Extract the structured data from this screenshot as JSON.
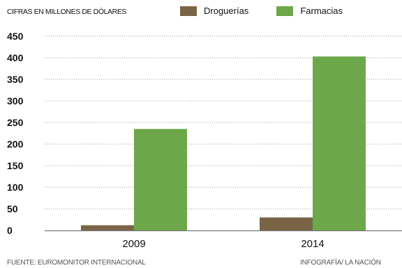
{
  "chart_data": {
    "type": "bar",
    "subtitle": "CIFRAS EN MILLONES DE DÓLARES",
    "categories": [
      "2009",
      "2014"
    ],
    "series": [
      {
        "name": "Droguerías",
        "color": "#7a6446",
        "values": [
          12,
          30
        ]
      },
      {
        "name": "Farmacias",
        "color": "#6ca84a",
        "values": [
          235,
          403
        ]
      }
    ],
    "ylim": [
      0,
      450
    ],
    "yticks": [
      0,
      50,
      100,
      150,
      200,
      250,
      300,
      350,
      400,
      450
    ],
    "grid": true,
    "legend_position": "top"
  },
  "source": "FUENTE: EUROMONITOR INTERNACIONAL",
  "credit": "INFOGRAFÍA/ LA NACIÓN"
}
